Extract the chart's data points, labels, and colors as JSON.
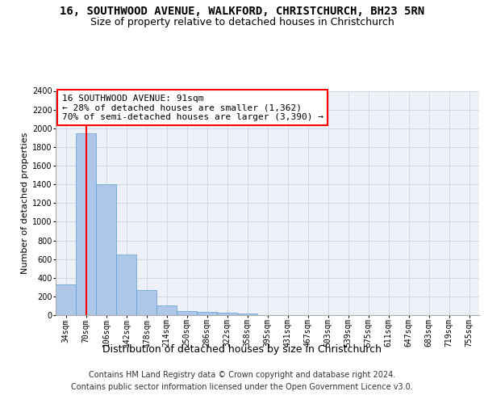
{
  "title1": "16, SOUTHWOOD AVENUE, WALKFORD, CHRISTCHURCH, BH23 5RN",
  "title2": "Size of property relative to detached houses in Christchurch",
  "xlabel": "Distribution of detached houses by size in Christchurch",
  "ylabel": "Number of detached properties",
  "categories": [
    "34sqm",
    "70sqm",
    "106sqm",
    "142sqm",
    "178sqm",
    "214sqm",
    "250sqm",
    "286sqm",
    "322sqm",
    "358sqm",
    "395sqm",
    "431sqm",
    "467sqm",
    "503sqm",
    "539sqm",
    "575sqm",
    "611sqm",
    "647sqm",
    "683sqm",
    "719sqm",
    "755sqm"
  ],
  "bar_values": [
    325,
    1950,
    1400,
    650,
    270,
    100,
    45,
    38,
    30,
    20,
    0,
    0,
    0,
    0,
    0,
    0,
    0,
    0,
    0,
    0,
    0
  ],
  "bar_color": "#aec6e8",
  "bar_edge_color": "#5a9fd4",
  "grid_color": "#d0d8e8",
  "background_color": "#eef2f8",
  "ylim": [
    0,
    2400
  ],
  "yticks": [
    0,
    200,
    400,
    600,
    800,
    1000,
    1200,
    1400,
    1600,
    1800,
    2000,
    2200,
    2400
  ],
  "vline_x": 1,
  "annotation_text1": "16 SOUTHWOOD AVENUE: 91sqm",
  "annotation_text2": "← 28% of detached houses are smaller (1,362)",
  "annotation_text3": "70% of semi-detached houses are larger (3,390) →",
  "footer1": "Contains HM Land Registry data © Crown copyright and database right 2024.",
  "footer2": "Contains public sector information licensed under the Open Government Licence v3.0.",
  "title_fontsize": 10,
  "subtitle_fontsize": 9,
  "annotation_fontsize": 8,
  "footer_fontsize": 7,
  "tick_fontsize": 7,
  "ylabel_fontsize": 8,
  "xlabel_fontsize": 9
}
